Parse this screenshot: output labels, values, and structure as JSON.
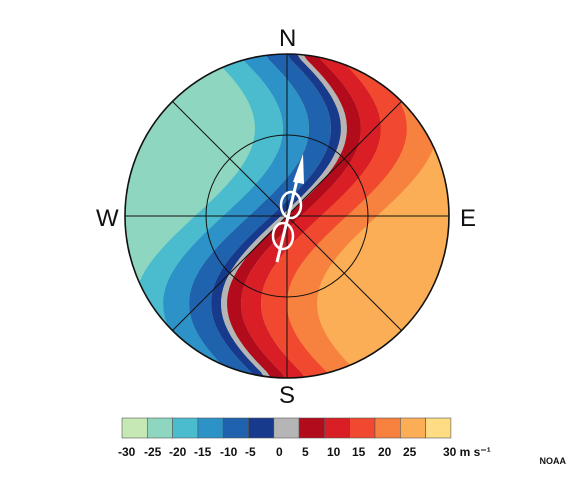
{
  "compass": {
    "north": "N",
    "south": "S",
    "east": "E",
    "west": "W"
  },
  "colorbar": {
    "tick_labels": [
      "-30",
      "-25",
      "-20",
      "-15",
      "-10",
      "-5",
      "0",
      "5",
      "10",
      "15",
      "20",
      "25",
      "30 m s⁻¹"
    ],
    "colors": [
      "#c6e8b5",
      "#8fd6c0",
      "#4bbccd",
      "#2c92c8",
      "#1f63ae",
      "#173a8c",
      "#b5b5b5",
      "#b20b1b",
      "#da1e26",
      "#f0492f",
      "#f7823f",
      "#fbae55",
      "#fddc83"
    ]
  },
  "credit": "NOAA"
}
